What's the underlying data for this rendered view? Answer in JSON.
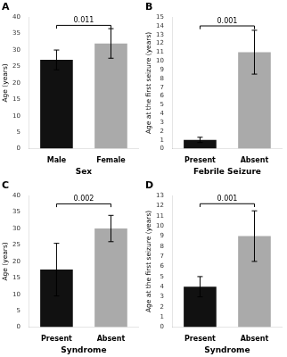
{
  "chart_data": [
    {
      "type": "bar",
      "title": "A",
      "categories": [
        "Male",
        "Female"
      ],
      "values": [
        27,
        32
      ],
      "errors": [
        3,
        4.5
      ],
      "colors": [
        "#111111",
        "#aaaaaa"
      ],
      "xlabel": "Sex",
      "ylabel": "Age (years)",
      "ylim": [
        0,
        40
      ],
      "yticks": [
        0,
        5,
        10,
        15,
        20,
        25,
        30,
        35,
        40
      ],
      "grid": false,
      "annotations": [
        {
          "text": "0.011",
          "y": 37.5,
          "from": "Male",
          "to": "Female"
        }
      ]
    },
    {
      "type": "bar",
      "title": "B",
      "categories": [
        "Present",
        "Absent"
      ],
      "values": [
        1,
        11
      ],
      "errors": [
        0.3,
        2.5
      ],
      "colors": [
        "#111111",
        "#aaaaaa"
      ],
      "xlabel": "Febrile Seizure",
      "ylabel": "Age at the first seizure (years)",
      "ylim": [
        0,
        15
      ],
      "yticks": [
        0,
        1,
        2,
        3,
        4,
        5,
        6,
        7,
        8,
        9,
        10,
        11,
        12,
        13,
        14,
        15
      ],
      "grid": false,
      "annotations": [
        {
          "text": "0.001",
          "y": 14.0,
          "from": "Present",
          "to": "Absent"
        }
      ]
    },
    {
      "type": "bar",
      "title": "C",
      "categories": [
        "Present",
        "Absent"
      ],
      "values": [
        17.5,
        30
      ],
      "errors": [
        8,
        4
      ],
      "colors": [
        "#111111",
        "#aaaaaa"
      ],
      "xlabel": "Syndrome",
      "ylabel": "Age (years)",
      "ylim": [
        0,
        40
      ],
      "yticks": [
        0,
        5,
        10,
        15,
        20,
        25,
        30,
        35,
        40
      ],
      "grid": false,
      "annotations": [
        {
          "text": "0.002",
          "y": 37.5,
          "from": "Present",
          "to": "Absent"
        }
      ]
    },
    {
      "type": "bar",
      "title": "D",
      "categories": [
        "Present",
        "Absent"
      ],
      "values": [
        4,
        9
      ],
      "errors": [
        1,
        2.5
      ],
      "colors": [
        "#111111",
        "#aaaaaa"
      ],
      "xlabel": "Syndrome",
      "ylabel": "Age at the first seizure (years)",
      "ylim": [
        0,
        13
      ],
      "yticks": [
        0,
        1,
        2,
        3,
        4,
        5,
        6,
        7,
        8,
        9,
        10,
        11,
        12,
        13
      ],
      "grid": false,
      "annotations": [
        {
          "text": "0.001",
          "y": 12.2,
          "from": "Present",
          "to": "Absent"
        }
      ]
    }
  ]
}
